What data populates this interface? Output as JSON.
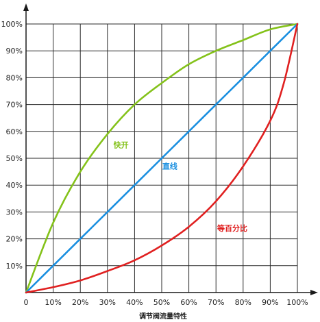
{
  "chart_data": {
    "type": "line",
    "title": "",
    "xlabel": "调节阀流量特性",
    "ylabel": "",
    "xlim": [
      0,
      100
    ],
    "ylim": [
      0,
      100
    ],
    "grid": true,
    "x_ticks": [
      "0",
      "10%",
      "20%",
      "30%",
      "40%",
      "50%",
      "60%",
      "70%",
      "80%",
      "90%",
      "100%"
    ],
    "y_ticks": [
      "10%",
      "20%",
      "30%",
      "40%",
      "50%",
      "60%",
      "70%",
      "80%",
      "90%",
      "100%"
    ],
    "series": [
      {
        "name": "快开",
        "color": "#84c21a",
        "x": [
          0,
          10,
          20,
          30,
          40,
          50,
          60,
          70,
          80,
          90,
          100
        ],
        "y": [
          0,
          26,
          45,
          59,
          70,
          78,
          85,
          90,
          94,
          98,
          100
        ]
      },
      {
        "name": "直线",
        "color": "#1a8fe0",
        "x": [
          0,
          10,
          20,
          30,
          40,
          50,
          60,
          70,
          80,
          90,
          100
        ],
        "y": [
          0,
          10,
          20,
          30,
          40,
          50,
          60,
          70,
          80,
          90,
          100
        ]
      },
      {
        "name": "等百分比",
        "color": "#e02020",
        "x": [
          0,
          10,
          20,
          30,
          40,
          50,
          60,
          70,
          80,
          90,
          95,
          100
        ],
        "y": [
          0,
          2,
          4.5,
          8,
          12,
          17.5,
          24.5,
          34,
          47,
          64,
          78,
          100
        ]
      }
    ]
  }
}
